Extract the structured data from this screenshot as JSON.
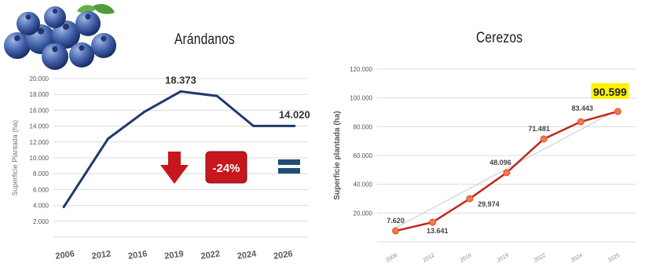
{
  "chart_data": [
    {
      "type": "line",
      "title": "Arándanos",
      "ylabel": "Superficie Plantada (ha)",
      "categories": [
        "2006",
        "2012",
        "2016",
        "2019",
        "2022",
        "2024",
        "2026"
      ],
      "series": [
        {
          "values": [
            3800,
            12400,
            15800,
            18373,
            17800,
            14020,
            14020
          ]
        }
      ],
      "yticks": [
        "2.000",
        "4.000",
        "6.000",
        "8.000",
        "10.000",
        "12.000",
        "14.000",
        "16.000",
        "18.000",
        "20.000"
      ],
      "ylim": [
        0,
        20000
      ],
      "grid": true,
      "colors": {
        "line": "#1f3a6e"
      },
      "annotations": [
        {
          "category": "2019",
          "label": "18.373"
        },
        {
          "category": "2026",
          "label": "14.020"
        }
      ],
      "badge": {
        "label": "-24%",
        "color": "#c8161d"
      },
      "symbols": [
        "down-arrow-icon",
        "equals-icon",
        "blueberries-icon"
      ]
    },
    {
      "type": "line",
      "title": "Cerezos",
      "ylabel": "Superficie plantada (ha)",
      "categories": [
        "2006",
        "2012",
        "2016",
        "2019",
        "2022",
        "2024",
        "2025"
      ],
      "series": [
        {
          "values": [
            7620,
            13641,
            29974,
            48096,
            71481,
            83443,
            90599
          ]
        }
      ],
      "data_labels": [
        "7.620",
        "13.641",
        "29.974",
        "48.096",
        "71.481",
        "83.443",
        "90.599"
      ],
      "yticks": [
        "20.000",
        "40.000",
        "60.000",
        "80.000",
        "100.000",
        "120.000"
      ],
      "ylim": [
        0,
        120000
      ],
      "grid": true,
      "colors": {
        "line": "#c0281e",
        "marker": "#f07a4a",
        "highlight": "#fff200"
      }
    }
  ]
}
